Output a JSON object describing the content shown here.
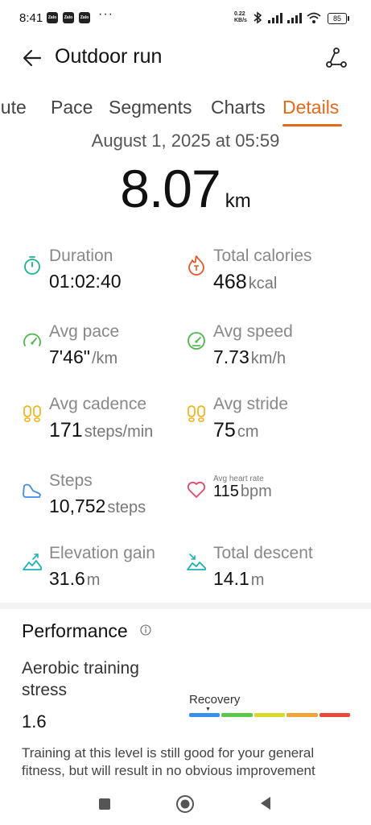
{
  "status_bar": {
    "time": "8:41",
    "app_badges": [
      "Zalo",
      "Zalo",
      "Zalo"
    ],
    "more": "···",
    "net_speed_value": "0.22",
    "net_speed_unit": "KB/s",
    "battery": "85"
  },
  "header": {
    "title": "Outdoor run"
  },
  "tabs": [
    {
      "label": "Route",
      "visible_label": "oute",
      "active": false
    },
    {
      "label": "Pace",
      "active": false
    },
    {
      "label": "Segments",
      "active": false
    },
    {
      "label": "Charts",
      "active": false
    },
    {
      "label": "Details",
      "active": true
    }
  ],
  "summary": {
    "date": "August 1, 2025 at 05:59",
    "distance": "8.07",
    "distance_unit": "km"
  },
  "metrics": [
    {
      "id": "duration",
      "label": "Duration",
      "value": "01:02:40",
      "unit": "",
      "icon": "stopwatch-icon",
      "color": "#1ab394"
    },
    {
      "id": "calories",
      "label": "Total calories",
      "value": "468",
      "unit": "kcal",
      "icon": "flame-icon",
      "color": "#e8552b"
    },
    {
      "id": "avg-pace",
      "label": "Avg pace",
      "value": "7'46\"",
      "unit": "/km",
      "icon": "speedometer-icon",
      "color": "#4cb848"
    },
    {
      "id": "avg-speed",
      "label": "Avg speed",
      "value": "7.73",
      "unit": "km/h",
      "icon": "speedometer-icon",
      "color": "#4cb848"
    },
    {
      "id": "avg-cadence",
      "label": "Avg cadence",
      "value": "171",
      "unit": "steps/min",
      "icon": "footprints-icon",
      "color": "#f0b41e"
    },
    {
      "id": "avg-stride",
      "label": "Avg stride",
      "value": "75",
      "unit": "cm",
      "icon": "footprints-icon",
      "color": "#f0b41e"
    },
    {
      "id": "steps",
      "label": "Steps",
      "value": "10,752",
      "unit": "steps",
      "icon": "shoe-icon",
      "color": "#3f8de8"
    },
    {
      "id": "avg-heart-rate",
      "label": "Avg heart rate",
      "value": "115",
      "unit": "bpm",
      "icon": "heart-icon",
      "color": "#e8456a"
    },
    {
      "id": "elevation-gain",
      "label": "Elevation gain",
      "value": "31.6",
      "unit": "m",
      "icon": "elevation-up-icon",
      "color": "#1ab3b3"
    },
    {
      "id": "total-descent",
      "label": "Total descent",
      "value": "14.1",
      "unit": "m",
      "icon": "elevation-down-icon",
      "color": "#1ab3b3"
    }
  ],
  "performance": {
    "title": "Performance",
    "ats_label": "Aerobic training stress",
    "ats_value": "1.6",
    "level_label": "Recovery",
    "scale_colors": [
      "#3a8fe8",
      "#5cc84a",
      "#d9d92a",
      "#f0a43a",
      "#e84a3a"
    ],
    "description": "Training at this level is still good for your general fitness, but will result in no obvious improvement"
  },
  "colors": {
    "accent": "#e8681a"
  }
}
